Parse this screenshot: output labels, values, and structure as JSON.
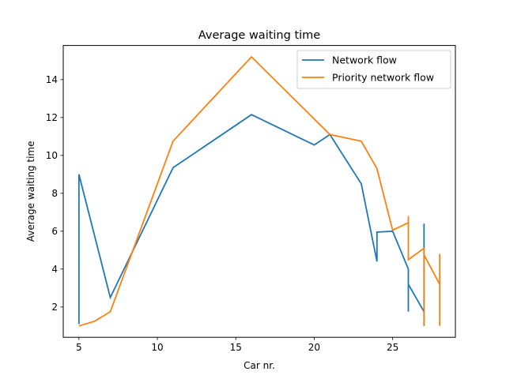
{
  "chart_data": {
    "type": "line",
    "title": "Average waiting time",
    "xlabel": "Car nr.",
    "ylabel": "Average waiting time",
    "xlim": [
      4.0,
      29.0
    ],
    "ylim": [
      0.4,
      15.8
    ],
    "xticks": [
      5,
      10,
      15,
      20,
      25
    ],
    "yticks": [
      2,
      4,
      6,
      8,
      10,
      12,
      14
    ],
    "grid": false,
    "legend_position": "top-right",
    "series": [
      {
        "name": "Network flow",
        "color": "#1f77b4",
        "x": [
          5,
          5,
          7,
          11,
          16,
          20,
          21,
          23,
          24,
          24,
          25,
          26,
          26,
          26,
          27,
          27,
          27,
          27
        ],
        "y": [
          1.1,
          9.0,
          2.5,
          9.35,
          12.15,
          10.55,
          11.1,
          8.5,
          4.4,
          5.95,
          6.0,
          4.0,
          1.75,
          3.2,
          1.75,
          6.4,
          1.0,
          2.5
        ]
      },
      {
        "name": "Priority network flow",
        "color": "#ff7f0e",
        "x": [
          5,
          6,
          7,
          11,
          16,
          21,
          23,
          24,
          25,
          26,
          26,
          26,
          27,
          27,
          27,
          28,
          28,
          28
        ],
        "y": [
          1.0,
          1.25,
          1.75,
          10.75,
          15.2,
          11.1,
          10.75,
          9.3,
          6.05,
          6.45,
          6.8,
          4.5,
          5.1,
          1.0,
          4.75,
          3.2,
          1.0,
          4.8
        ]
      }
    ]
  }
}
